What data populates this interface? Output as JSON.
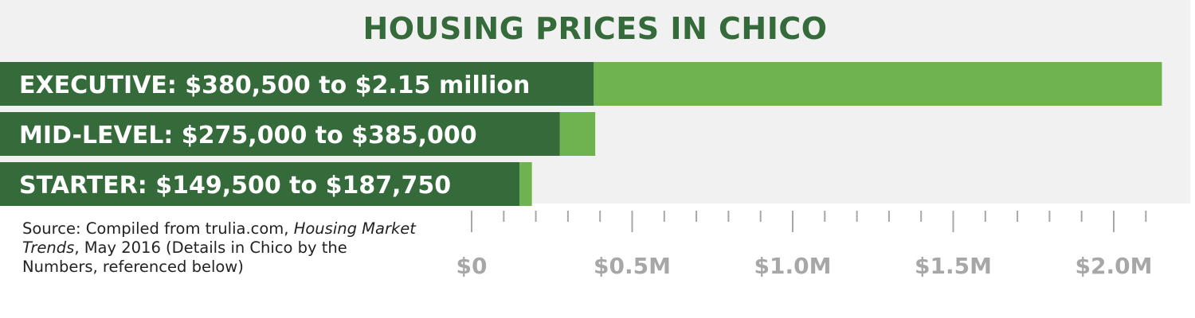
{
  "title": "HOUSING PRICES IN CHICO",
  "source": {
    "prefix": "Source: Compiled from trulia.com, ",
    "publication": "Housing Market Trends",
    "suffix": ", May 2016 (Details in Chico by the Numbers, referenced below)"
  },
  "colors": {
    "panel": "#f1f1f1",
    "title": "#356b3a",
    "low_segment": "#356b3a",
    "range_segment": "#6fb250",
    "tick": "#a7a7a7"
  },
  "chart_data": {
    "type": "bar",
    "orientation": "horizontal",
    "stacked_range": true,
    "title": "HOUSING PRICES IN CHICO",
    "categories": [
      "EXECUTIVE",
      "MID-LEVEL",
      "STARTER"
    ],
    "bars": [
      {
        "category": "EXECUTIVE",
        "label": "EXECUTIVE: $380,500 to $2.15 million",
        "low": 380500,
        "high": 2150000
      },
      {
        "category": "MID-LEVEL",
        "label": "MID-LEVEL: $275,000 to $385,000",
        "low": 275000,
        "high": 385000
      },
      {
        "category": "STARTER",
        "label": "STARTER: $149,500 to $187,750",
        "low": 149500,
        "high": 187750
      }
    ],
    "xlim": [
      0,
      2150000
    ],
    "major_ticks": [
      {
        "value": 0,
        "label": "$0"
      },
      {
        "value": 500000,
        "label": "$0.5M"
      },
      {
        "value": 1000000,
        "label": "$1.0M"
      },
      {
        "value": 1500000,
        "label": "$1.5M"
      },
      {
        "value": 2000000,
        "label": "$2.0M"
      }
    ],
    "minor_tick_step": 100000,
    "grid": false,
    "legend": "none"
  }
}
